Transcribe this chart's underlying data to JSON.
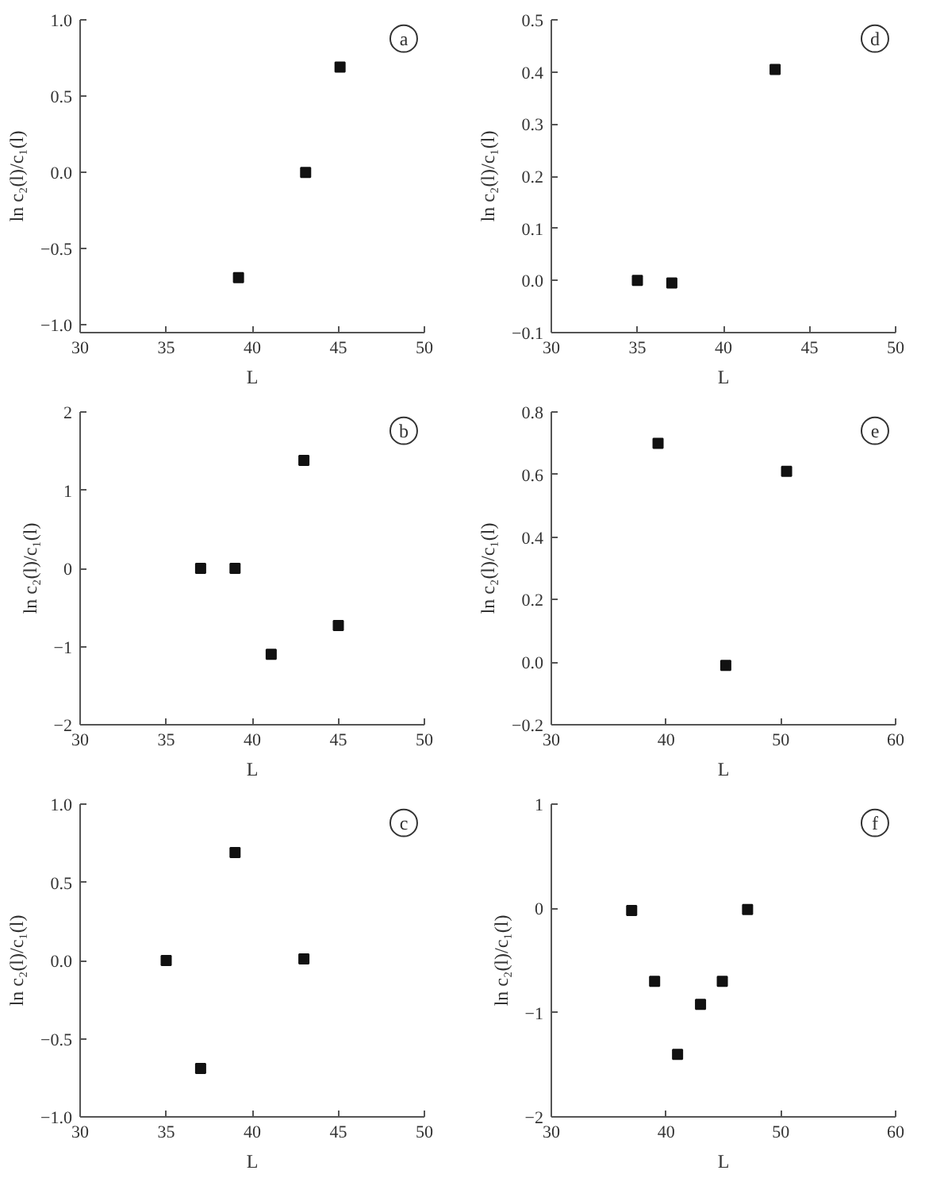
{
  "chart_data": [
    {
      "type": "scatter",
      "xlabel": "L",
      "ylabel": "ln c₂(l)/c₁(l)",
      "annotations": [
        "a"
      ],
      "x": [
        39.2,
        43.1,
        45.1
      ],
      "values": [
        -0.69,
        0.0,
        0.69
      ],
      "color": "#111111",
      "marker": "square",
      "xlim": [
        30,
        50
      ],
      "xticks": [
        30,
        35,
        40,
        45,
        50
      ],
      "ylim": [
        -1.05,
        1.0
      ],
      "yticks": [
        {
          "value": -1.0,
          "label": "−1.0"
        },
        {
          "value": -0.5,
          "label": "−0.5"
        },
        {
          "value": 0.0,
          "label": "0.0"
        },
        {
          "value": 0.5,
          "label": "0.5"
        },
        {
          "value": 1.0,
          "label": "1.0"
        }
      ],
      "grid": false
    },
    {
      "type": "scatter",
      "xlabel": "L",
      "ylabel": "ln c₂(l)/c₁(l)",
      "annotations": [
        "d"
      ],
      "x": [
        35,
        37,
        43
      ],
      "values": [
        0.0,
        -0.005,
        0.405
      ],
      "color": "#111111",
      "marker": "square",
      "xlim": [
        30,
        50
      ],
      "xticks": [
        30,
        35,
        40,
        45,
        50
      ],
      "ylim": [
        -0.1,
        0.5
      ],
      "yticks": [
        {
          "value": -0.1,
          "label": "−0.1"
        },
        {
          "value": 0.0,
          "label": "0.0"
        },
        {
          "value": 0.1,
          "label": "0.1"
        },
        {
          "value": 0.2,
          "label": "0.2"
        },
        {
          "value": 0.3,
          "label": "0.3"
        },
        {
          "value": 0.4,
          "label": "0.4"
        },
        {
          "value": 0.5,
          "label": "0.5"
        }
      ],
      "grid": false
    },
    {
      "type": "scatter",
      "xlabel": "L",
      "ylabel": "ln c₂(l)/c₁(l)",
      "annotations": [
        "b"
      ],
      "x": [
        37,
        39,
        41.1,
        43,
        45
      ],
      "values": [
        0.0,
        0.0,
        -1.1,
        1.38,
        -0.73
      ],
      "color": "#111111",
      "marker": "square",
      "xlim": [
        30,
        50
      ],
      "xticks": [
        30,
        35,
        40,
        45,
        50
      ],
      "ylim": [
        -2,
        2
      ],
      "yticks": [
        {
          "value": -2,
          "label": "−2"
        },
        {
          "value": -1,
          "label": "−1"
        },
        0,
        1,
        2
      ],
      "grid": false
    },
    {
      "type": "scatter",
      "xlabel": "L",
      "ylabel": "ln c₂(l)/c₁(l)",
      "annotations": [
        "e"
      ],
      "x": [
        39.3,
        45.2,
        50.5
      ],
      "values": [
        0.7,
        -0.01,
        0.61
      ],
      "color": "#111111",
      "marker": "square",
      "xlim": [
        30,
        60
      ],
      "xticks": [
        30,
        40,
        50,
        60
      ],
      "ylim": [
        -0.2,
        0.8
      ],
      "yticks": [
        {
          "value": -0.2,
          "label": "−0.2"
        },
        {
          "value": 0.0,
          "label": "0.0"
        },
        {
          "value": 0.2,
          "label": "0.2"
        },
        {
          "value": 0.4,
          "label": "0.4"
        },
        {
          "value": 0.6,
          "label": "0.6"
        },
        {
          "value": 0.8,
          "label": "0.8"
        }
      ],
      "grid": false
    },
    {
      "type": "scatter",
      "xlabel": "L",
      "ylabel": "ln c₂(l)/c₁(l)",
      "annotations": [
        "c"
      ],
      "x": [
        35,
        37,
        39,
        43
      ],
      "values": [
        0.0,
        -0.69,
        0.69,
        0.01
      ],
      "color": "#111111",
      "marker": "square",
      "xlim": [
        30,
        50
      ],
      "xticks": [
        30,
        35,
        40,
        45,
        50
      ],
      "ylim": [
        -1.0,
        1.0
      ],
      "yticks": [
        {
          "value": -1.0,
          "label": "−1.0"
        },
        {
          "value": -0.5,
          "label": "−0.5"
        },
        {
          "value": 0.0,
          "label": "0.0"
        },
        {
          "value": 0.5,
          "label": "0.5"
        },
        {
          "value": 1.0,
          "label": "1.0"
        }
      ],
      "grid": false
    },
    {
      "type": "scatter",
      "xlabel": "L",
      "ylabel": "ln c₂(l)/c₁(l)",
      "annotations": [
        "f"
      ],
      "x": [
        37,
        39,
        41,
        43,
        44.9,
        47.1
      ],
      "values": [
        -0.02,
        -0.7,
        -1.4,
        -0.92,
        -0.7,
        -0.01
      ],
      "color": "#111111",
      "marker": "square",
      "xlim": [
        30,
        60
      ],
      "xticks": [
        30,
        40,
        50,
        60
      ],
      "ylim": [
        -2,
        1
      ],
      "yticks": [
        {
          "value": -2,
          "label": "−2"
        },
        {
          "value": -1,
          "label": "−1"
        },
        0,
        1
      ],
      "grid": false
    }
  ]
}
